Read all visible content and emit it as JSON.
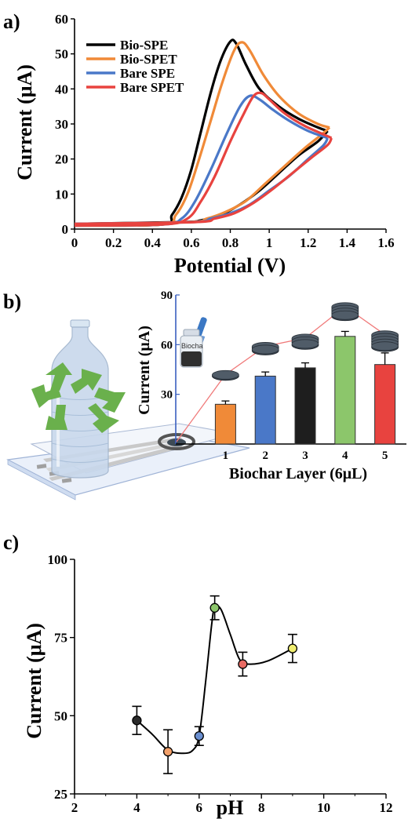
{
  "panels": [
    {
      "label": "a)"
    },
    {
      "label": "b)"
    },
    {
      "label": "c)"
    }
  ],
  "chart_data": [
    {
      "id": "a",
      "type": "line",
      "xlabel": "Potential (V)",
      "ylabel": "Current (μA)",
      "xlim": [
        0,
        1.6
      ],
      "ylim": [
        0,
        60
      ],
      "xticks": [
        "0",
        "0.2",
        "0.4",
        "0.6",
        "0.8",
        "1",
        "1.2",
        "1.4",
        "1.6"
      ],
      "yticks": [
        "0",
        "10",
        "20",
        "30",
        "40",
        "50",
        "60"
      ],
      "legend_position": "top-left",
      "series": [
        {
          "name": "Bio-SPE",
          "color": "#000000",
          "forward": [
            [
              0,
              1
            ],
            [
              0.45,
              1.3
            ],
            [
              0.5,
              4
            ],
            [
              0.55,
              9
            ],
            [
              0.6,
              17
            ],
            [
              0.65,
              28
            ],
            [
              0.7,
              39
            ],
            [
              0.75,
              48
            ],
            [
              0.8,
              53.5
            ],
            [
              0.83,
              53
            ],
            [
              0.88,
              47
            ],
            [
              0.95,
              40
            ],
            [
              1.05,
              35
            ],
            [
              1.15,
              31.5
            ],
            [
              1.25,
              29
            ],
            [
              1.3,
              28
            ]
          ],
          "reverse": [
            [
              1.3,
              28
            ],
            [
              1.25,
              25
            ],
            [
              1.15,
              21
            ],
            [
              1.05,
              16
            ],
            [
              0.95,
              11
            ],
            [
              0.85,
              7
            ],
            [
              0.75,
              4
            ],
            [
              0.65,
              2.5
            ],
            [
              0.55,
              2
            ],
            [
              0,
              1.5
            ]
          ]
        },
        {
          "name": "Bio-SPET",
          "color": "#f08a38",
          "forward": [
            [
              0,
              1
            ],
            [
              0.45,
              1.3
            ],
            [
              0.52,
              4
            ],
            [
              0.58,
              10
            ],
            [
              0.64,
              20
            ],
            [
              0.7,
              31
            ],
            [
              0.76,
              42
            ],
            [
              0.82,
              51
            ],
            [
              0.86,
              53.3
            ],
            [
              0.9,
              51
            ],
            [
              0.97,
              44
            ],
            [
              1.05,
              38
            ],
            [
              1.15,
              33
            ],
            [
              1.25,
              30
            ],
            [
              1.31,
              29
            ]
          ],
          "reverse": [
            [
              1.31,
              29
            ],
            [
              1.27,
              27
            ],
            [
              1.18,
              23
            ],
            [
              1.08,
              18
            ],
            [
              0.98,
              13
            ],
            [
              0.88,
              8
            ],
            [
              0.78,
              5
            ],
            [
              0.68,
              3
            ],
            [
              0.58,
              2
            ],
            [
              0,
              1.5
            ]
          ]
        },
        {
          "name": "Bare SPE",
          "color": "#4a78c8",
          "forward": [
            [
              0,
              1
            ],
            [
              0.45,
              1.3
            ],
            [
              0.55,
              3
            ],
            [
              0.62,
              8
            ],
            [
              0.7,
              17
            ],
            [
              0.78,
              27
            ],
            [
              0.85,
              35
            ],
            [
              0.9,
              38
            ],
            [
              0.95,
              37
            ],
            [
              1.02,
              34
            ],
            [
              1.1,
              31
            ],
            [
              1.2,
              28
            ],
            [
              1.3,
              26
            ]
          ],
          "reverse": [
            [
              1.3,
              26
            ],
            [
              1.28,
              24
            ],
            [
              1.2,
              20
            ],
            [
              1.1,
              15
            ],
            [
              1.0,
              11
            ],
            [
              0.9,
              7
            ],
            [
              0.8,
              4.5
            ],
            [
              0.7,
              3
            ],
            [
              0.6,
              2
            ],
            [
              0,
              1.5
            ]
          ]
        },
        {
          "name": "Bare SPET",
          "color": "#e8433f",
          "forward": [
            [
              0,
              1
            ],
            [
              0.45,
              1.3
            ],
            [
              0.58,
              3
            ],
            [
              0.65,
              8
            ],
            [
              0.72,
              15
            ],
            [
              0.8,
              25
            ],
            [
              0.87,
              33
            ],
            [
              0.92,
              38
            ],
            [
              0.96,
              38.8
            ],
            [
              1.0,
              37
            ],
            [
              1.08,
              33
            ],
            [
              1.18,
              29.5
            ],
            [
              1.28,
              27
            ],
            [
              1.32,
              26
            ]
          ],
          "reverse": [
            [
              1.32,
              26
            ],
            [
              1.3,
              24
            ],
            [
              1.22,
              20.5
            ],
            [
              1.12,
              16
            ],
            [
              1.02,
              11.5
            ],
            [
              0.92,
              7.5
            ],
            [
              0.82,
              4.5
            ],
            [
              0.72,
              3
            ],
            [
              0.62,
              2
            ],
            [
              0,
              1.5
            ]
          ]
        }
      ]
    },
    {
      "id": "b",
      "type": "bar",
      "xlabel": "Biochar Layer (6μL)",
      "ylabel": "Current (μA)",
      "ylim": [
        0,
        90
      ],
      "yticks": [
        "30",
        "60",
        "90"
      ],
      "categories": [
        "1",
        "2",
        "3",
        "4",
        "5"
      ],
      "values": [
        24,
        41,
        46,
        65,
        48
      ],
      "errors": [
        2,
        2.5,
        3,
        3,
        7
      ],
      "colors": [
        "#f08a38",
        "#4a78c8",
        "#1e1e1e",
        "#8cc66b",
        "#e8433f"
      ],
      "line_color": "#f07a7a",
      "bottle_label": "Biocha"
    },
    {
      "id": "c",
      "type": "scatter",
      "xlabel": "pH",
      "ylabel": "Current (μA)",
      "xlim": [
        2,
        12
      ],
      "ylim": [
        25,
        100
      ],
      "xticks": [
        "2",
        "4",
        "6",
        "8",
        "10",
        "12"
      ],
      "yticks": [
        "25",
        "50",
        "75",
        "100"
      ],
      "points": [
        {
          "x": 4,
          "y": 48.5,
          "err": 4.5,
          "color": "#2a2a2a"
        },
        {
          "x": 5,
          "y": 38.5,
          "err": 7,
          "color": "#f2a06a"
        },
        {
          "x": 6,
          "y": 43.5,
          "err": 3,
          "color": "#6a8fd0"
        },
        {
          "x": 6.5,
          "y": 84.5,
          "err": 3.8,
          "color": "#8cc66b"
        },
        {
          "x": 7.4,
          "y": 66.5,
          "err": 3.8,
          "color": "#e86a63"
        },
        {
          "x": 9,
          "y": 71.5,
          "err": 4.5,
          "color": "#f0ee70"
        }
      ],
      "curve": [
        [
          4,
          48.5
        ],
        [
          4.5,
          44
        ],
        [
          5,
          39
        ],
        [
          5.5,
          38
        ],
        [
          5.8,
          39
        ],
        [
          6,
          43.5
        ],
        [
          6.2,
          60
        ],
        [
          6.4,
          79
        ],
        [
          6.5,
          84.5
        ],
        [
          6.7,
          84
        ],
        [
          7,
          76
        ],
        [
          7.3,
          68
        ],
        [
          7.6,
          66.5
        ],
        [
          8.2,
          67.5
        ],
        [
          9,
          71.5
        ]
      ]
    }
  ]
}
